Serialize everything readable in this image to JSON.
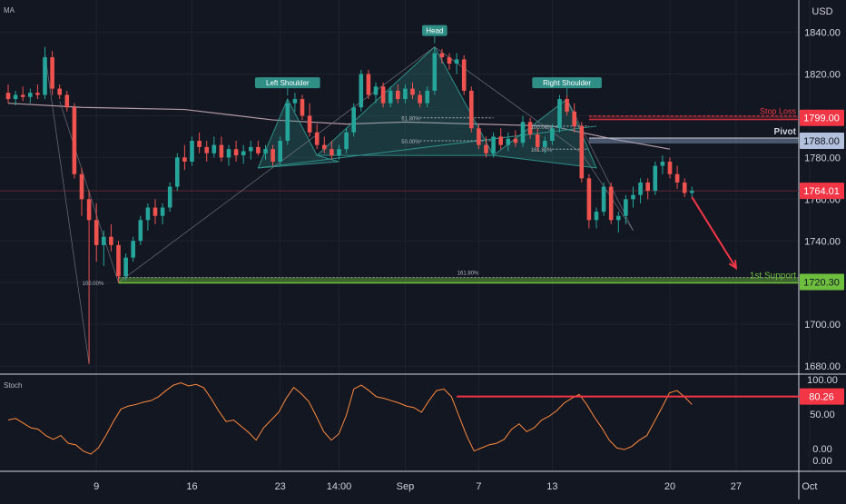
{
  "chart_data": [
    {
      "type": "candlestick",
      "indicator_label": "MA",
      "currency": "USD",
      "y_ticks": [
        1680,
        1700,
        1720,
        1740,
        1760,
        1780,
        1800,
        1820,
        1840
      ],
      "y_tick_labels": [
        "1680.00",
        "1700.00",
        "1720.00",
        "1740.00",
        "1760.00",
        "1780.00",
        "1800.00",
        "1820.00",
        "1840.00"
      ],
      "ylim": [
        1677,
        1852
      ],
      "x_ticks": [
        {
          "i": 12,
          "label": "9"
        },
        {
          "i": 25,
          "label": "16"
        },
        {
          "i": 37,
          "label": "23"
        },
        {
          "i": 45,
          "label": "14:00"
        },
        {
          "i": 54,
          "label": "Sep"
        },
        {
          "i": 64,
          "label": "7"
        },
        {
          "i": 74,
          "label": "13"
        },
        {
          "i": 90,
          "label": "20"
        },
        {
          "i": 99,
          "label": "27"
        },
        {
          "i": 109,
          "label": "Oct"
        }
      ],
      "candles": [
        [
          1811,
          1815,
          1806,
          1808
        ],
        [
          1808,
          1812,
          1805,
          1810
        ],
        [
          1810,
          1814,
          1807,
          1809
        ],
        [
          1809,
          1813,
          1806,
          1811
        ],
        [
          1811,
          1815,
          1808,
          1810
        ],
        [
          1810,
          1833,
          1808,
          1828
        ],
        [
          1828,
          1831,
          1810,
          1813
        ],
        [
          1813,
          1815,
          1808,
          1810
        ],
        [
          1810,
          1812,
          1802,
          1804
        ],
        [
          1804,
          1806,
          1770,
          1772
        ],
        [
          1772,
          1775,
          1752,
          1760
        ],
        [
          1760,
          1764,
          1681,
          1750
        ],
        [
          1750,
          1758,
          1730,
          1738
        ],
        [
          1738,
          1745,
          1728,
          1742
        ],
        [
          1742,
          1748,
          1735,
          1738
        ],
        [
          1738,
          1740,
          1720,
          1723
        ],
        [
          1723,
          1734,
          1721,
          1732
        ],
        [
          1732,
          1742,
          1730,
          1740
        ],
        [
          1740,
          1752,
          1738,
          1750
        ],
        [
          1750,
          1758,
          1745,
          1756
        ],
        [
          1756,
          1760,
          1748,
          1752
        ],
        [
          1752,
          1758,
          1748,
          1756
        ],
        [
          1756,
          1768,
          1754,
          1766
        ],
        [
          1766,
          1782,
          1764,
          1780
        ],
        [
          1780,
          1786,
          1774,
          1778
        ],
        [
          1778,
          1790,
          1776,
          1788
        ],
        [
          1788,
          1792,
          1782,
          1785
        ],
        [
          1785,
          1788,
          1778,
          1782
        ],
        [
          1782,
          1790,
          1780,
          1786
        ],
        [
          1786,
          1790,
          1778,
          1780
        ],
        [
          1780,
          1786,
          1776,
          1784
        ],
        [
          1784,
          1788,
          1778,
          1781
        ],
        [
          1781,
          1786,
          1777,
          1783
        ],
        [
          1783,
          1788,
          1779,
          1785
        ],
        [
          1785,
          1788,
          1781,
          1782
        ],
        [
          1782,
          1786,
          1779,
          1784
        ],
        [
          1784,
          1786,
          1776,
          1778
        ],
        [
          1778,
          1790,
          1776,
          1788
        ],
        [
          1788,
          1808,
          1786,
          1806
        ],
        [
          1806,
          1811,
          1802,
          1808
        ],
        [
          1808,
          1810,
          1798,
          1800
        ],
        [
          1800,
          1806,
          1790,
          1792
        ],
        [
          1792,
          1796,
          1784,
          1786
        ],
        [
          1786,
          1790,
          1782,
          1784
        ],
        [
          1784,
          1788,
          1779,
          1781
        ],
        [
          1781,
          1786,
          1779,
          1784
        ],
        [
          1784,
          1794,
          1782,
          1792
        ],
        [
          1792,
          1806,
          1790,
          1804
        ],
        [
          1804,
          1822,
          1802,
          1820
        ],
        [
          1820,
          1822,
          1808,
          1810
        ],
        [
          1810,
          1816,
          1806,
          1814
        ],
        [
          1814,
          1816,
          1804,
          1806
        ],
        [
          1806,
          1814,
          1804,
          1812
        ],
        [
          1812,
          1815,
          1806,
          1808
        ],
        [
          1808,
          1815,
          1806,
          1813
        ],
        [
          1813,
          1816,
          1808,
          1810
        ],
        [
          1810,
          1812,
          1804,
          1806
        ],
        [
          1806,
          1814,
          1804,
          1812
        ],
        [
          1812,
          1833,
          1810,
          1830
        ],
        [
          1830,
          1832,
          1825,
          1828
        ],
        [
          1828,
          1830,
          1822,
          1825
        ],
        [
          1825,
          1830,
          1820,
          1827
        ],
        [
          1827,
          1829,
          1810,
          1812
        ],
        [
          1812,
          1814,
          1792,
          1794
        ],
        [
          1794,
          1796,
          1784,
          1786
        ],
        [
          1786,
          1790,
          1780,
          1782
        ],
        [
          1782,
          1792,
          1780,
          1790
        ],
        [
          1790,
          1794,
          1784,
          1786
        ],
        [
          1786,
          1792,
          1783,
          1789
        ],
        [
          1789,
          1793,
          1785,
          1787
        ],
        [
          1787,
          1800,
          1785,
          1797
        ],
        [
          1797,
          1799,
          1789,
          1791
        ],
        [
          1791,
          1794,
          1783,
          1785
        ],
        [
          1785,
          1790,
          1782,
          1788
        ],
        [
          1788,
          1796,
          1786,
          1794
        ],
        [
          1794,
          1810,
          1792,
          1808
        ],
        [
          1808,
          1810,
          1800,
          1802
        ],
        [
          1802,
          1806,
          1792,
          1795
        ],
        [
          1795,
          1797,
          1768,
          1770
        ],
        [
          1770,
          1772,
          1746,
          1750
        ],
        [
          1750,
          1756,
          1746,
          1754
        ],
        [
          1754,
          1768,
          1752,
          1766
        ],
        [
          1766,
          1768,
          1748,
          1750
        ],
        [
          1750,
          1754,
          1744,
          1752
        ],
        [
          1752,
          1762,
          1748,
          1760
        ],
        [
          1760,
          1766,
          1756,
          1762
        ],
        [
          1762,
          1770,
          1758,
          1768
        ],
        [
          1768,
          1770,
          1760,
          1764
        ],
        [
          1764,
          1778,
          1762,
          1776
        ],
        [
          1776,
          1781,
          1772,
          1778
        ],
        [
          1778,
          1780,
          1770,
          1772
        ],
        [
          1772,
          1776,
          1765,
          1768
        ],
        [
          1768,
          1770,
          1761,
          1763
        ],
        [
          1763,
          1766,
          1761,
          1764
        ]
      ],
      "ma_points": [
        [
          0,
          1806
        ],
        [
          10,
          1804
        ],
        [
          24,
          1803
        ],
        [
          36,
          1798
        ],
        [
          46,
          1796
        ],
        [
          54,
          1797
        ],
        [
          64,
          1796
        ],
        [
          74,
          1795
        ],
        [
          82,
          1789
        ],
        [
          90,
          1784
        ]
      ],
      "pattern_polygons": [
        [
          [
            34,
            1775
          ],
          [
            38,
            1808
          ],
          [
            42,
            1781
          ],
          [
            45,
            1778
          ]
        ],
        [
          [
            42,
            1781
          ],
          [
            58,
            1833
          ],
          [
            66,
            1781
          ]
        ],
        [
          [
            66,
            1781
          ],
          [
            76,
            1808
          ],
          [
            80,
            1775
          ]
        ]
      ],
      "neckline": [
        [
          34,
          1775
        ],
        [
          80,
          1795
        ]
      ],
      "harmonic_lines": [
        [
          [
            5,
            1830
          ],
          [
            11,
            1681
          ]
        ],
        [
          [
            7,
            1807
          ],
          [
            15,
            1720
          ]
        ],
        [
          [
            15,
            1720
          ],
          [
            58,
            1833
          ]
        ],
        [
          [
            58,
            1833
          ],
          [
            78,
            1782
          ]
        ],
        [
          [
            78,
            1782
          ],
          [
            85,
            1745
          ]
        ],
        [
          [
            76,
            1808
          ],
          [
            85,
            1745
          ]
        ]
      ],
      "patterns": [
        {
          "label": "Head",
          "i": 58,
          "y": 1833
        },
        {
          "label": "Left Shoulder",
          "i": 38,
          "y": 1808
        },
        {
          "label": "Right Shoulder",
          "i": 76,
          "y": 1808
        }
      ],
      "fib_labels": [
        {
          "label": "61.80%",
          "i": 56,
          "y": 1799
        },
        {
          "label": "50.00%",
          "i": 56,
          "y": 1788
        },
        {
          "label": "100.00%",
          "i": 74,
          "y": 1795
        },
        {
          "label": "161.80%",
          "i": 74,
          "y": 1784
        },
        {
          "label": "161.80%",
          "i": 64,
          "y": 1725
        },
        {
          "label": "100.00%",
          "i": 13,
          "y": 1720
        }
      ],
      "levels": [
        {
          "label": "Stop Loss",
          "value": 1799.0,
          "price_label": "1799.00",
          "color": "#f23645",
          "from": 79
        },
        {
          "label": "Pivot",
          "value": 1788.0,
          "price_label": "1788.00",
          "color": "#b2b5be",
          "from": 79
        },
        {
          "label": "1st Support",
          "value": 1720.3,
          "price_label": "1720.30",
          "color": "#6fbf3f",
          "from": 15
        }
      ],
      "current_price": {
        "value": 1764.01,
        "label": "1764.01",
        "color": "#f23645"
      },
      "forecast_arrow": {
        "from": [
          93,
          1761
        ],
        "to": [
          99,
          1727
        ],
        "color": "#f23645"
      },
      "colors": {
        "up": "#26a69a",
        "down": "#ef5350",
        "ma": "#b49aa5",
        "pattern": "#2f8f87",
        "level_support": "#6fbf3f"
      }
    },
    {
      "type": "line",
      "title": "Stoch",
      "y_ticks": [
        0,
        50,
        100
      ],
      "y_tick_labels": [
        "0.00",
        "50.00",
        "100.00"
      ],
      "ylim": [
        -15,
        108
      ],
      "values": [
        50,
        52,
        46,
        40,
        38,
        30,
        25,
        30,
        20,
        18,
        10,
        6,
        14,
        30,
        48,
        64,
        68,
        70,
        73,
        75,
        80,
        88,
        95,
        98,
        94,
        96,
        92,
        78,
        62,
        48,
        50,
        42,
        34,
        24,
        40,
        50,
        60,
        78,
        92,
        84,
        74,
        55,
        35,
        24,
        32,
        56,
        90,
        95,
        88,
        80,
        78,
        75,
        72,
        68,
        66,
        60,
        75,
        88,
        90,
        80,
        55,
        30,
        10,
        14,
        18,
        20,
        25,
        38,
        45,
        35,
        40,
        50,
        55,
        62,
        72,
        78,
        83,
        70,
        54,
        40,
        24,
        14,
        12,
        16,
        24,
        30,
        48,
        66,
        85,
        88,
        80,
        70
      ],
      "level": {
        "value": 80.26,
        "label": "80.26",
        "color": "#f23645",
        "from": 61,
        "to": 109
      }
    }
  ]
}
